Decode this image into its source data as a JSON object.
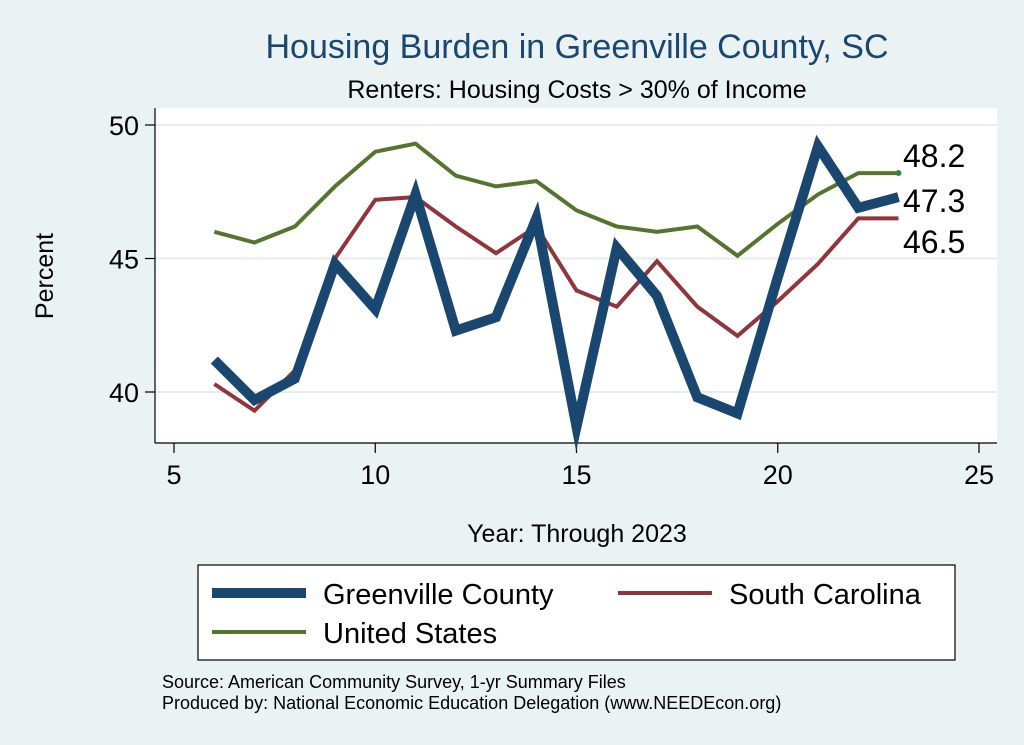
{
  "chart_data": {
    "type": "line",
    "title": "Housing Burden in Greenville County, SC",
    "subtitle": "Renters: Housing Costs > 30% of Income",
    "xlabel": "Year: Through 2023",
    "ylabel": "Percent",
    "xlim": [
      5,
      25
    ],
    "ylim": [
      38.6,
      50.5
    ],
    "xticks": [
      5,
      10,
      15,
      20,
      25
    ],
    "yticks": [
      40,
      45,
      50
    ],
    "grid": true,
    "legend_position": "bottom",
    "x": [
      6,
      7,
      8,
      9,
      10,
      11,
      12,
      13,
      14,
      15,
      16,
      17,
      18,
      19,
      20,
      21,
      22,
      23
    ],
    "series": [
      {
        "name": "Greenville County",
        "color": "#1a476f",
        "width": "thick",
        "values": [
          41.2,
          39.7,
          40.5,
          44.8,
          43.1,
          47.4,
          42.3,
          42.8,
          46.5,
          38.7,
          45.4,
          43.6,
          39.8,
          39.2,
          44.3,
          49.2,
          46.9,
          47.3
        ],
        "end_label": "47.3"
      },
      {
        "name": "South Carolina",
        "color": "#90353b",
        "width": "medium",
        "values": [
          40.3,
          39.3,
          40.8,
          45.0,
          47.2,
          47.3,
          46.2,
          45.2,
          46.2,
          43.8,
          43.2,
          44.9,
          43.2,
          42.1,
          43.4,
          44.8,
          46.5,
          46.5
        ],
        "end_label": "46.5"
      },
      {
        "name": "United States",
        "color": "#55752f",
        "width": "medium",
        "values": [
          46.0,
          45.6,
          46.2,
          47.7,
          49.0,
          49.3,
          48.1,
          47.7,
          47.9,
          46.8,
          46.2,
          46.0,
          46.2,
          45.1,
          46.3,
          47.4,
          48.2,
          48.2
        ],
        "end_label": "48.2"
      }
    ]
  },
  "notes": {
    "source": "Source: American Community Survey, 1-yr Summary Files",
    "produced": "Produced by: National Economic Education Delegation (www.NEEDEcon.org)"
  },
  "colors": {
    "background": "#eaf2f3",
    "plot_background": "#ffffff",
    "title": "#1a476f"
  }
}
